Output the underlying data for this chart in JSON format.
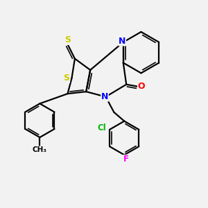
{
  "background_color": "#f2f2f2",
  "bond_color": "#000000",
  "atom_colors": {
    "S": "#cccc00",
    "N": "#0000ff",
    "O": "#ff0000",
    "Cl": "#00bb00",
    "F": "#ff00ff",
    "C": "#000000"
  },
  "figsize": [
    3.0,
    3.0
  ],
  "dpi": 100,
  "lw": 1.6,
  "lw_inner": 1.2
}
